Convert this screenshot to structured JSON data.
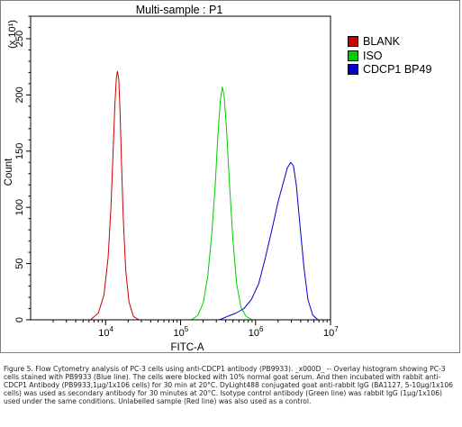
{
  "chart_data": {
    "type": "line",
    "title": "Multi-sample : P1",
    "xlabel": "FITC-A",
    "ylabel": "Count",
    "y_multiplier": "(x 10¹)",
    "x_scale": "log",
    "xlim": [
      1000,
      10000000
    ],
    "ylim": [
      0,
      270
    ],
    "y_ticks": [
      0,
      50,
      100,
      150,
      200,
      250
    ],
    "x_ticks": [
      {
        "value": 10000,
        "base": "10",
        "exp": "4"
      },
      {
        "value": 100000,
        "base": "10",
        "exp": "5"
      },
      {
        "value": 1000000,
        "base": "10",
        "exp": "6"
      },
      {
        "value": 10000000,
        "base": "10",
        "exp": "7"
      }
    ],
    "legend_position": "top-right",
    "series": [
      {
        "name": "BLANK",
        "color": "#cc0000",
        "x": [
          6300,
          8000,
          9500,
          10800,
          11800,
          12600,
          13300,
          13900,
          14400,
          15000,
          15600,
          16300,
          17200,
          18500,
          20500,
          23500,
          28000
        ],
        "y": [
          0,
          6,
          22,
          55,
          100,
          150,
          192,
          215,
          221,
          214,
          185,
          140,
          90,
          45,
          16,
          3,
          0
        ]
      },
      {
        "name": "ISO",
        "color": "#00cc00",
        "x": [
          140000,
          170000,
          200000,
          230000,
          260000,
          290000,
          315000,
          340000,
          360000,
          380000,
          410000,
          450000,
          500000,
          560000,
          640000,
          750000,
          900000
        ],
        "y": [
          0,
          4,
          15,
          38,
          75,
          120,
          165,
          195,
          207,
          200,
          170,
          120,
          70,
          32,
          11,
          3,
          0
        ]
      },
      {
        "name": "CDCP1 BP49",
        "color": "#0000cc",
        "x": [
          330000,
          420000,
          550000,
          700000,
          880000,
          1100000,
          1350000,
          1650000,
          2000000,
          2350000,
          2650000,
          2950000,
          3200000,
          3500000,
          3900000,
          4400000,
          5000000,
          5800000,
          6800000
        ],
        "y": [
          0,
          3,
          6,
          10,
          18,
          32,
          55,
          80,
          105,
          122,
          135,
          140,
          137,
          120,
          85,
          48,
          18,
          4,
          0
        ]
      }
    ]
  },
  "caption": "Figure 5. Flow Cytometry analysis of PC-3 cells using anti-CDCP1 antibody (PB9933). _x000D_ -- Overlay histogram showing PC-3 cells stained with PB9933 (Blue line). The cells were blocked with 10% normal goat serum. And then incubated with rabbit anti-CDCP1 Antibody (PB9933,1µg/1x106 cells) for 30 min at 20°C. DyLight488 conjugated goat anti-rabbit IgG (BA1127, 5-10µg/1x106 cells) was used as secondary antibody for 30 minutes at 20°C. Isotype control antibody (Green line) was rabbit IgG (1µg/1x106) used under the same conditions. Unlabelled sample (Red line) was also used as a control."
}
